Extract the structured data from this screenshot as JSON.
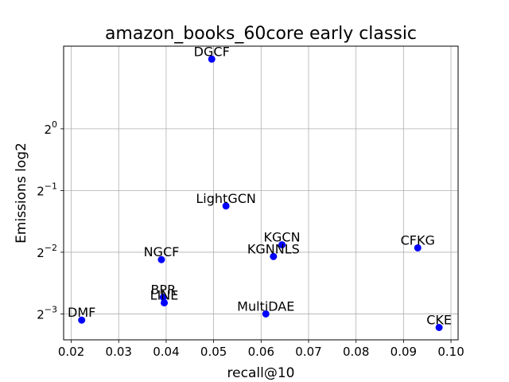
{
  "chart_data": {
    "type": "scatter",
    "title": "amazon_books_60core early classic",
    "xlabel": "recall@10",
    "ylabel": "Emissions log2",
    "xlim": [
      0.0184,
      0.1015
    ],
    "ylim_log2": [
      -3.42,
      1.34
    ],
    "y_scale": "log2",
    "grid": true,
    "marker_color": "#0000ff",
    "x_ticks": [
      "0.02",
      "0.03",
      "0.04",
      "0.05",
      "0.06",
      "0.07",
      "0.08",
      "0.09",
      "0.10"
    ],
    "x_tick_values": [
      0.02,
      0.03,
      0.04,
      0.05,
      0.06,
      0.07,
      0.08,
      0.09,
      0.1
    ],
    "y_tick_exponents": [
      "0",
      "−1",
      "−2",
      "−3"
    ],
    "y_tick_values_log2": [
      0,
      -1,
      -2,
      -3
    ],
    "y_tick_base": "2",
    "points": [
      {
        "label": "DGCF",
        "x": 0.0496,
        "y_log2": 1.13
      },
      {
        "label": "LightGCN",
        "x": 0.0526,
        "y_log2": -1.25
      },
      {
        "label": "KGCN",
        "x": 0.0644,
        "y_log2": -1.88
      },
      {
        "label": "KGNNLS",
        "x": 0.0626,
        "y_log2": -2.07
      },
      {
        "label": "CFKG",
        "x": 0.093,
        "y_log2": -1.93
      },
      {
        "label": "NGCF",
        "x": 0.039,
        "y_log2": -2.12
      },
      {
        "label": "BPR",
        "x": 0.0394,
        "y_log2": -2.73
      },
      {
        "label": "LINE",
        "x": 0.0396,
        "y_log2": -2.82
      },
      {
        "label": "MultiDAE",
        "x": 0.061,
        "y_log2": -3.0
      },
      {
        "label": "DMF",
        "x": 0.0222,
        "y_log2": -3.1
      },
      {
        "label": "CKE",
        "x": 0.0975,
        "y_log2": -3.22
      }
    ]
  }
}
